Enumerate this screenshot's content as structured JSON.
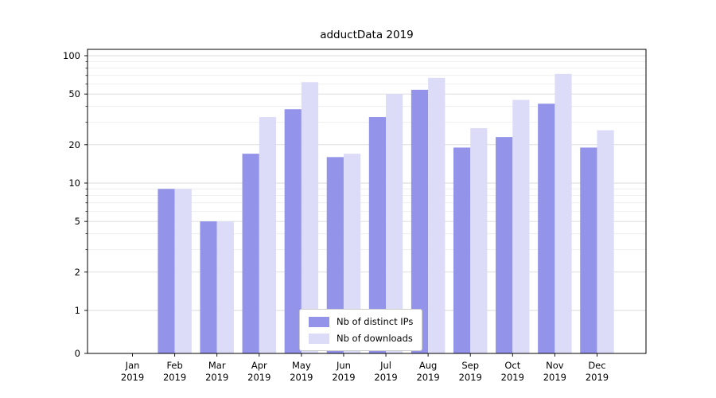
{
  "figure": {
    "background": "#ffffff"
  },
  "chart_data": {
    "type": "bar",
    "title": "adductData 2019",
    "categories": [
      "Jan",
      "Feb",
      "Mar",
      "Apr",
      "May",
      "Jun",
      "Jul",
      "Aug",
      "Sep",
      "Oct",
      "Nov",
      "Dec"
    ],
    "year": "2019",
    "yscale": "symlog",
    "ylim": [
      0,
      100
    ],
    "yticks": [
      0,
      1,
      2,
      5,
      10,
      20,
      50,
      100
    ],
    "minor_yticks": [
      3,
      4,
      6,
      7,
      8,
      9,
      30,
      40,
      60,
      70,
      80,
      90
    ],
    "grid": true,
    "grid_color_major": "#d9d9d9",
    "grid_color_minor": "#ebebeb",
    "legend_position": "lower center",
    "series": [
      {
        "name": "Nb of distinct IPs",
        "color": "#9393ea",
        "values": [
          0,
          9,
          5,
          17,
          38,
          16,
          33,
          54,
          19,
          23,
          42,
          19
        ]
      },
      {
        "name": "Nb of downloads",
        "color": "#dcdcf8",
        "values": [
          0,
          9,
          5,
          33,
          62,
          17,
          50,
          67,
          27,
          45,
          72,
          26
        ]
      }
    ]
  }
}
